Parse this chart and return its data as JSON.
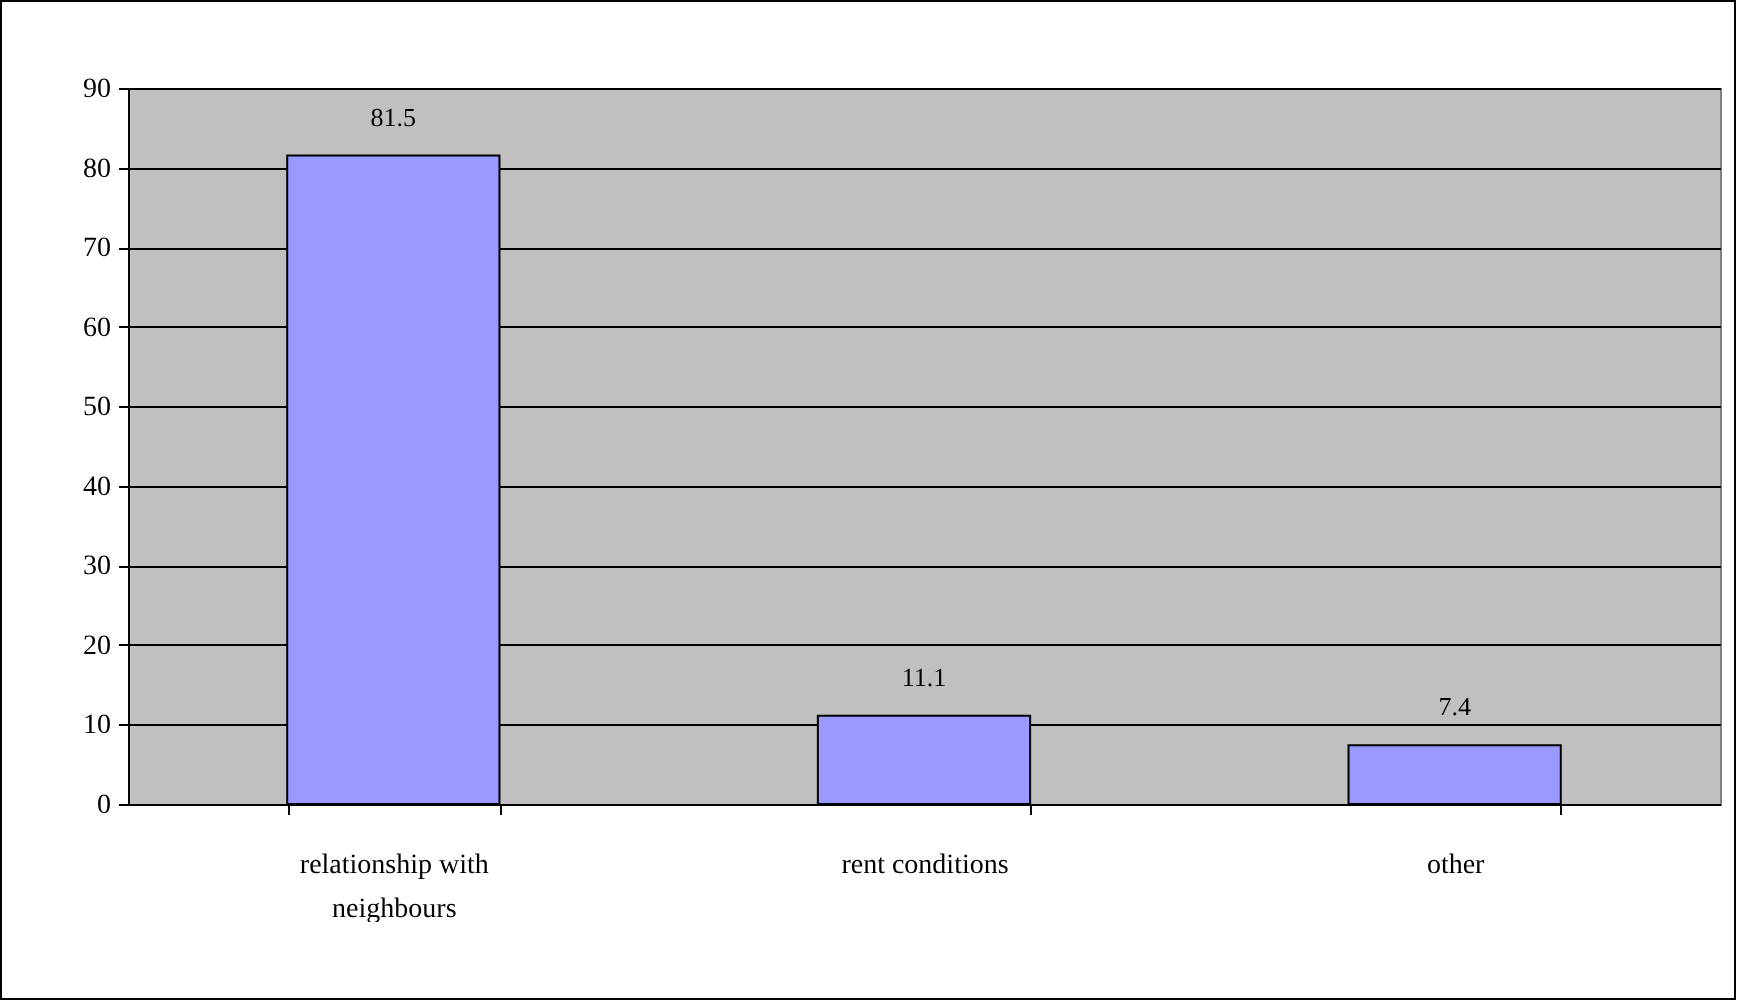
{
  "chart_data": {
    "type": "bar",
    "categories": [
      "relationship with neighbours",
      "rent conditions",
      "other"
    ],
    "values": [
      81.5,
      11.1,
      7.4
    ],
    "color": "#9999ff",
    "ylim": [
      0,
      90
    ],
    "yticks": [
      0,
      10,
      20,
      30,
      40,
      50,
      60,
      70,
      80,
      90
    ],
    "grid": "y",
    "data_labels": true
  }
}
